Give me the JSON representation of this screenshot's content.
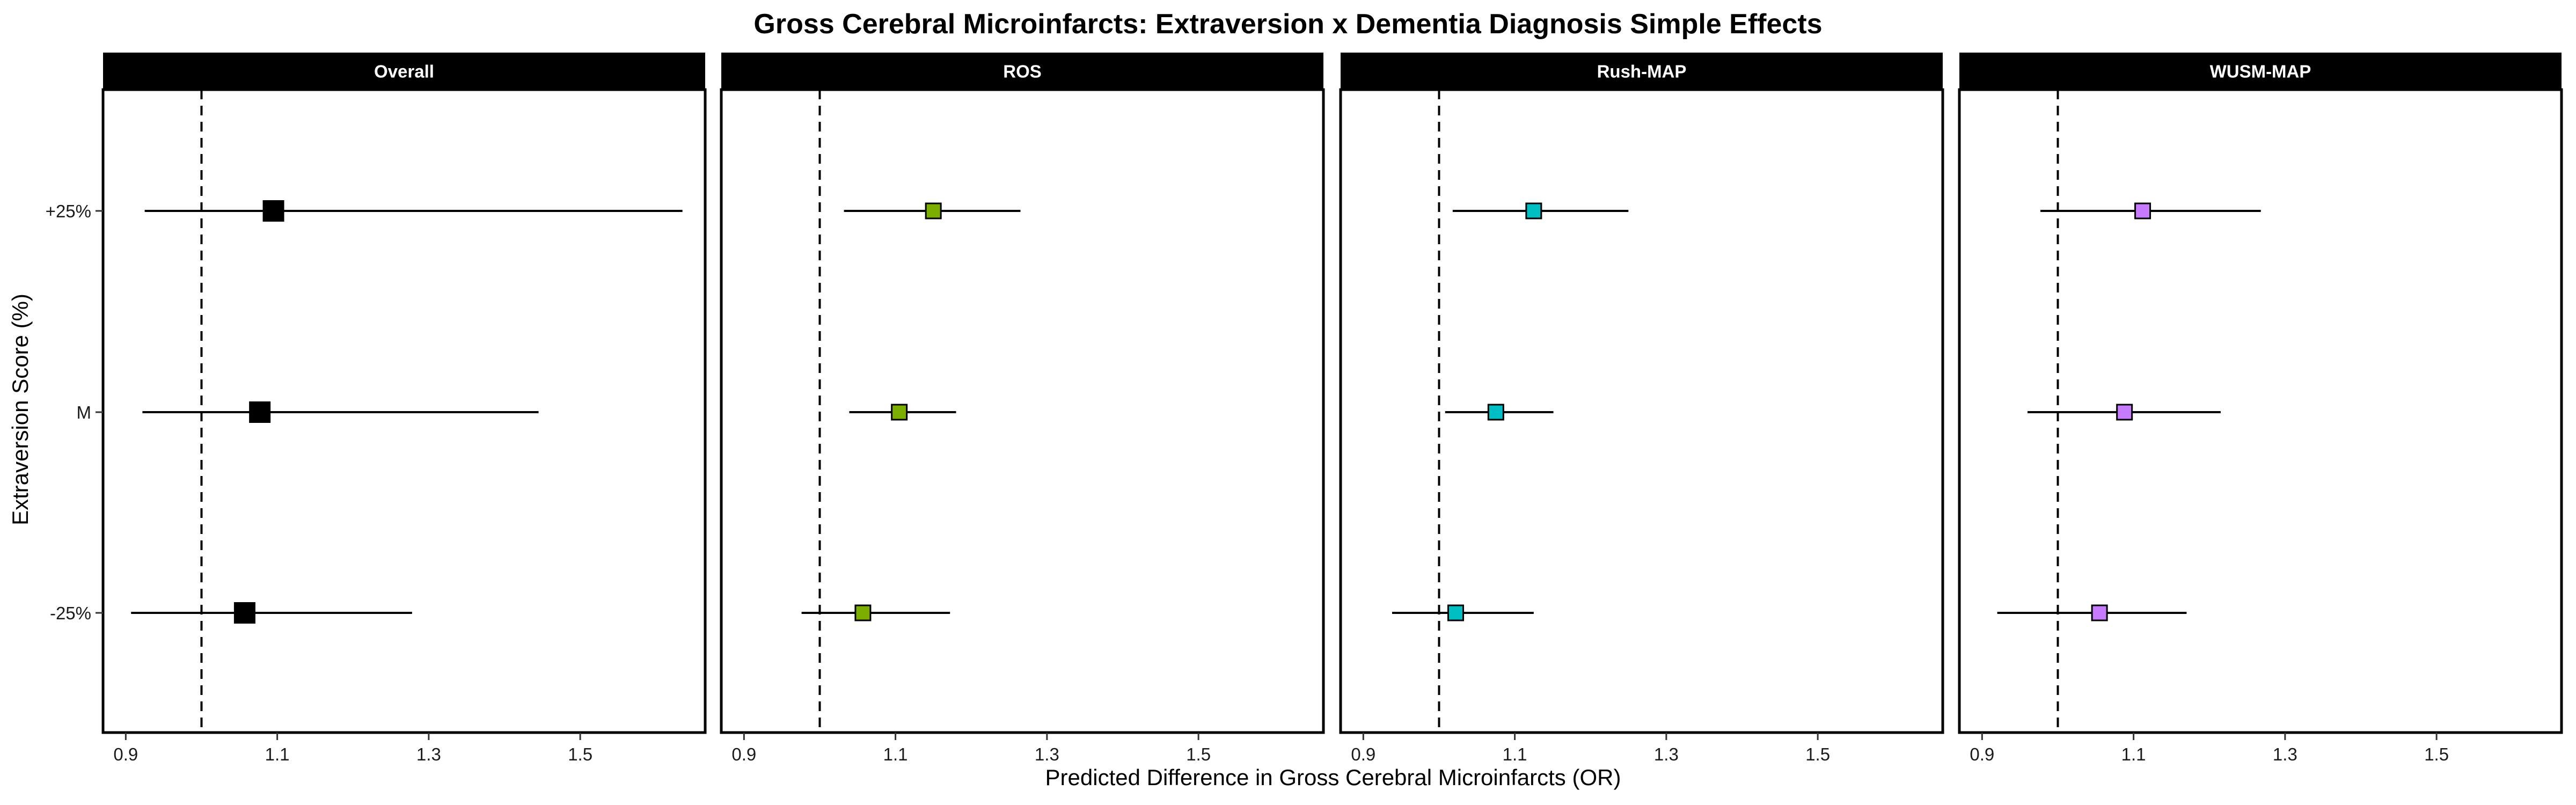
{
  "chart_data": {
    "type": "forest",
    "title": "Gross Cerebral Microinfarcts: Extraversion x Dementia Diagnosis Simple Effects",
    "xlabel": "Predicted Difference in Gross Cerebral Microinfarcts (OR)",
    "ylabel": "Extraversion Score (%)",
    "categories": [
      "+25%",
      "M",
      "-25%"
    ],
    "xlim": [
      0.87,
      1.665
    ],
    "x_ticks": [
      0.9,
      1.1,
      1.3,
      1.5
    ],
    "reference_line": 1.0,
    "grid": false,
    "legend": "none",
    "panels": [
      {
        "name": "Overall",
        "color": "#000000",
        "points": [
          {
            "category": "+25%",
            "estimate": 1.095,
            "lower": 0.925,
            "upper": 1.635
          },
          {
            "category": "M",
            "estimate": 1.077,
            "lower": 0.922,
            "upper": 1.445
          },
          {
            "category": "-25%",
            "estimate": 1.057,
            "lower": 0.907,
            "upper": 1.278
          }
        ]
      },
      {
        "name": "ROS",
        "color": "#7CAE00",
        "points": [
          {
            "category": "+25%",
            "estimate": 1.15,
            "lower": 1.032,
            "upper": 1.265
          },
          {
            "category": "M",
            "estimate": 1.105,
            "lower": 1.039,
            "upper": 1.18
          },
          {
            "category": "-25%",
            "estimate": 1.057,
            "lower": 0.976,
            "upper": 1.172
          }
        ]
      },
      {
        "name": "Rush-MAP",
        "color": "#00BFC4",
        "points": [
          {
            "category": "+25%",
            "estimate": 1.125,
            "lower": 1.018,
            "upper": 1.25
          },
          {
            "category": "M",
            "estimate": 1.075,
            "lower": 1.008,
            "upper": 1.151
          },
          {
            "category": "-25%",
            "estimate": 1.022,
            "lower": 0.938,
            "upper": 1.125
          }
        ]
      },
      {
        "name": "WUSM-MAP",
        "color": "#C77CFF",
        "points": [
          {
            "category": "+25%",
            "estimate": 1.112,
            "lower": 0.977,
            "upper": 1.268
          },
          {
            "category": "M",
            "estimate": 1.088,
            "lower": 0.96,
            "upper": 1.215
          },
          {
            "category": "-25%",
            "estimate": 1.055,
            "lower": 0.92,
            "upper": 1.17
          }
        ]
      }
    ]
  }
}
